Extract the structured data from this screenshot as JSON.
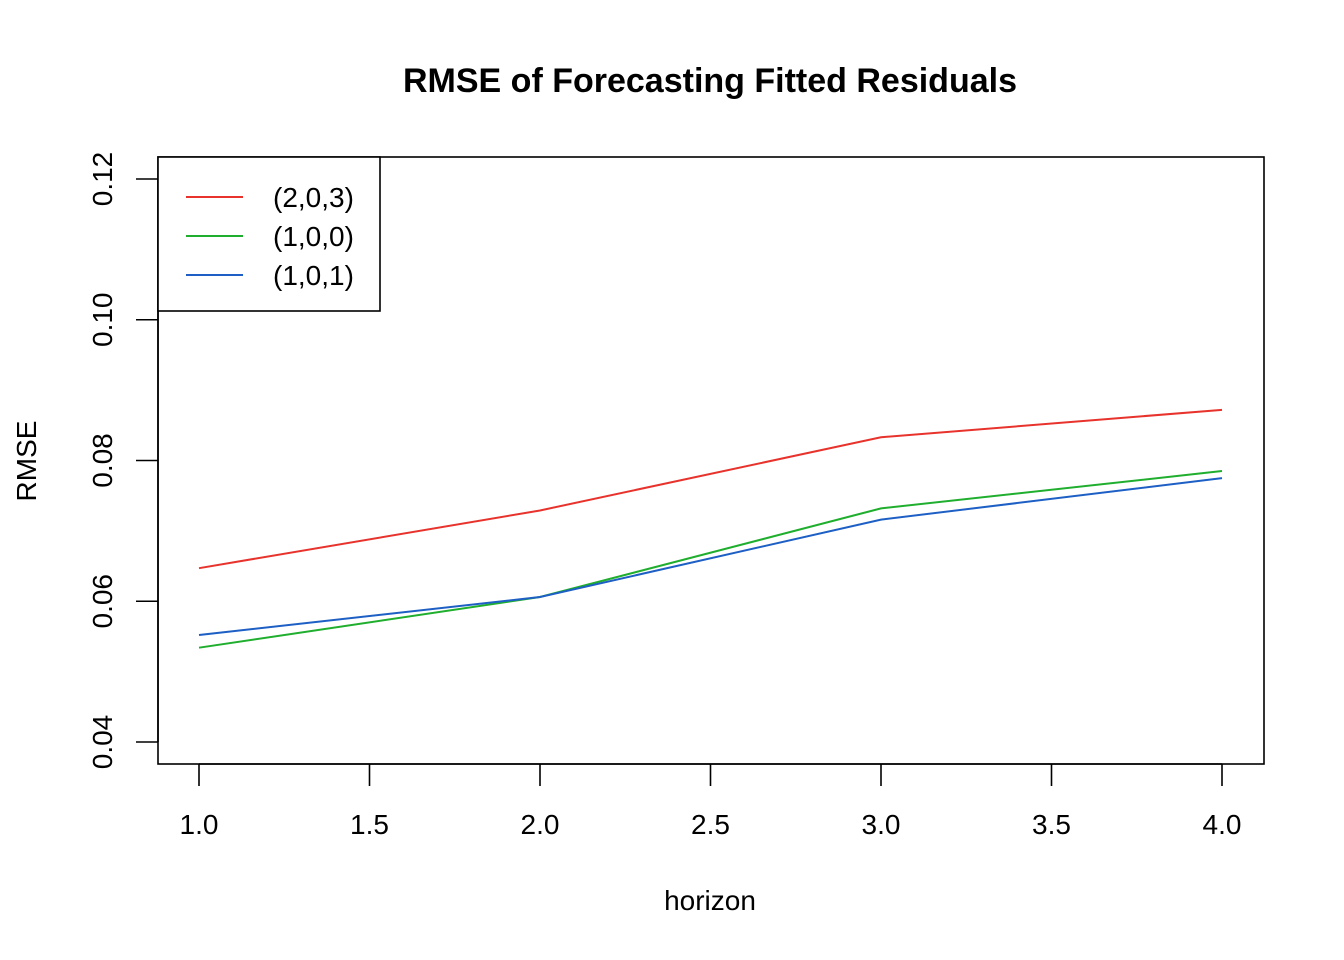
{
  "chart_data": {
    "type": "line",
    "title": "RMSE of Forecasting Fitted Residuals",
    "xlabel": "horizon",
    "ylabel": "RMSE",
    "x": [
      1,
      2,
      3,
      4
    ],
    "xlim": [
      1,
      4
    ],
    "ylim": [
      0.04,
      0.12
    ],
    "xticks": [
      "1.0",
      "1.5",
      "2.0",
      "2.5",
      "3.0",
      "3.5",
      "4.0"
    ],
    "yticks": [
      "0.04",
      "0.06",
      "0.08",
      "0.10",
      "0.12"
    ],
    "grid": false,
    "legend_position": "top-left",
    "series": [
      {
        "name": "(2,0,3)",
        "color": "#e8322c",
        "values": [
          0.0647,
          0.0729,
          0.0833,
          0.0872
        ]
      },
      {
        "name": "(1,0,0)",
        "color": "#1fae2d",
        "values": [
          0.0534,
          0.0606,
          0.0732,
          0.0785
        ]
      },
      {
        "name": "(1,0,1)",
        "color": "#1d5fc4",
        "values": [
          0.0552,
          0.0606,
          0.0716,
          0.0775
        ]
      }
    ]
  }
}
